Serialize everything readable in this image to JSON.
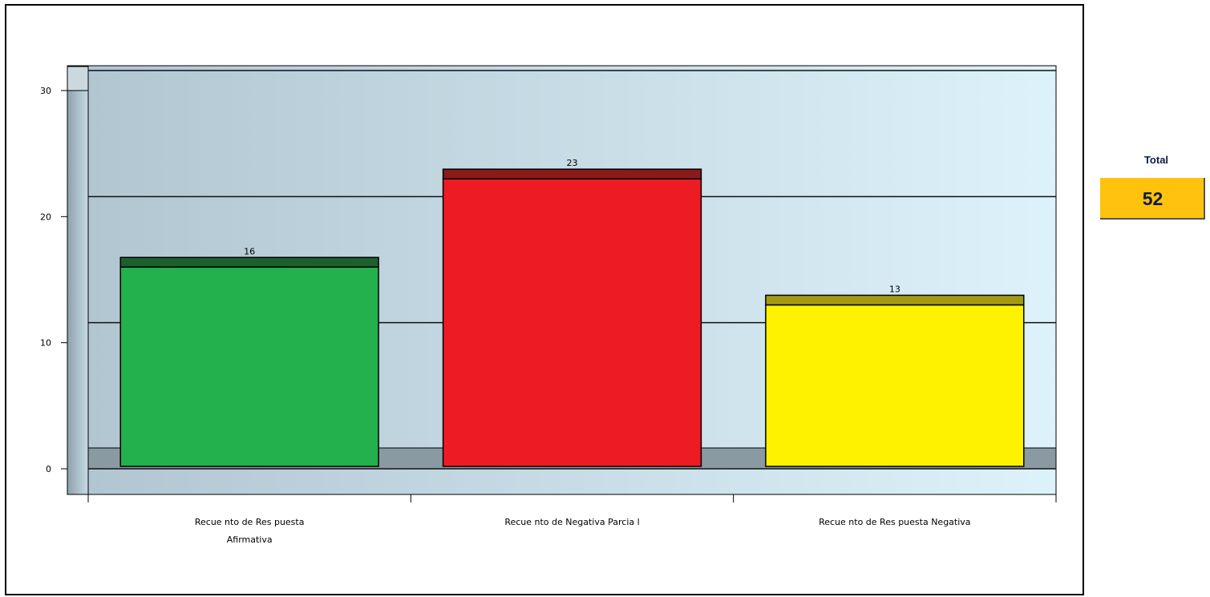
{
  "chart_data": {
    "type": "bar",
    "categories": [
      "Recuento de Respuesta Afirmativa",
      "Recuento de Negativa Parcial",
      "Recuento de Respuesta Negativa"
    ],
    "category_lines": [
      [
        "Recue nto de Res puesta",
        "Afirmativa"
      ],
      [
        "Recue nto de Negativa Parcia l"
      ],
      [
        "Recue nto de Res puesta Negativa"
      ]
    ],
    "values": [
      16,
      23,
      13
    ],
    "data_labels": [
      "16",
      "23",
      "13"
    ],
    "colors": [
      "#22b14c",
      "#ed1c24",
      "#fff200"
    ],
    "cap_colors": [
      "#1e5f2e",
      "#8b1a1a",
      "#a39a12"
    ],
    "yticks": [
      "0",
      "10",
      "20",
      "30"
    ],
    "ylim": [
      0,
      31
    ],
    "grid": true,
    "legend": "none"
  },
  "total": {
    "label": "Total",
    "value": "52",
    "color": "#ffc20e"
  }
}
